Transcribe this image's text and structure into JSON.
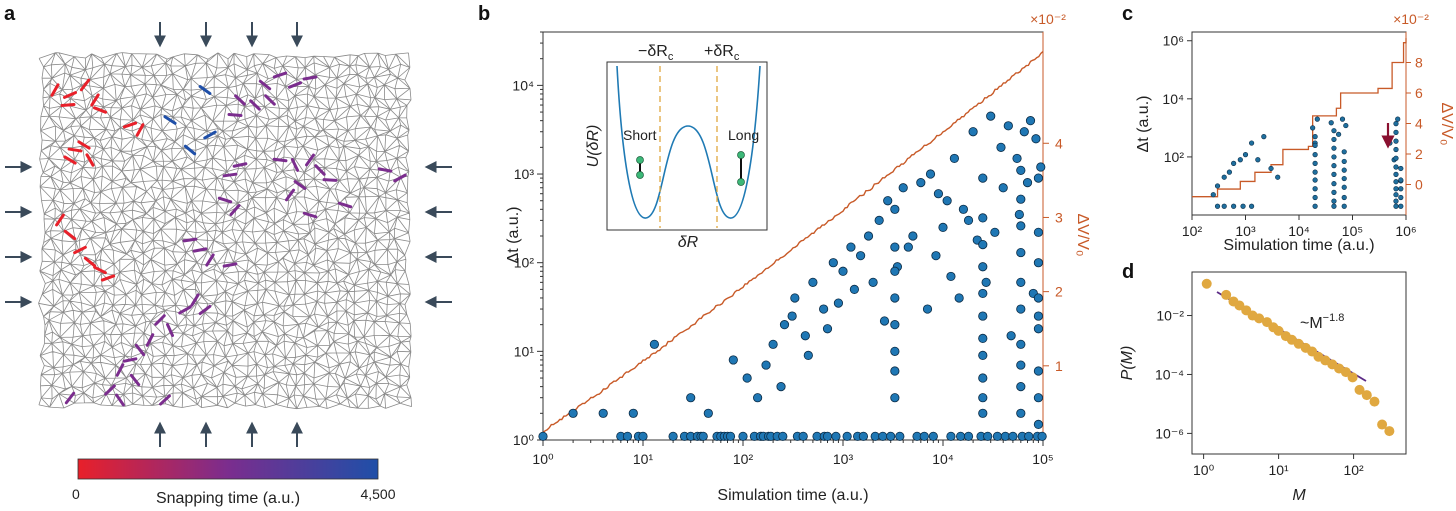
{
  "panels": {
    "a": {
      "label": "a",
      "colorbar": {
        "title": "Snapping time (a.u.)",
        "min_label": "0",
        "max_label": "4,500",
        "color_start": "#e8202a",
        "color_mid": "#7b2d8e",
        "color_end": "#1f4fa8"
      },
      "mesh_color": "#8a8a8a",
      "arrow_color": "#3a4a5a"
    },
    "b": {
      "label": "b",
      "xlabel": "Simulation time (a.u.)",
      "ylabel": "Δt (a.u.)",
      "ylabel_right": "ΔV/V₀",
      "right_multiplier": "×10⁻²",
      "x_ticks": [
        "10⁰",
        "10¹",
        "10²",
        "10³",
        "10⁴",
        "10⁵"
      ],
      "y_ticks": [
        "10⁰",
        "10¹",
        "10²",
        "10³",
        "10⁴"
      ],
      "y_ticks_right": [
        "1",
        "2",
        "3",
        "4"
      ],
      "inset": {
        "xlabel": "δR",
        "ylabel": "U(δR)",
        "left_marker": "−δR",
        "left_marker_sub": "c",
        "right_marker": "+δR",
        "right_marker_sub": "c",
        "short_label": "Short",
        "long_label": "Long"
      }
    },
    "c": {
      "label": "c",
      "xlabel": "Simulation time (a.u.)",
      "ylabel": "Δt (a.u.)",
      "ylabel_right": "ΔV/V₀",
      "right_multiplier": "×10⁻²",
      "x_ticks": [
        "10²",
        "10³",
        "10⁴",
        "10⁵",
        "10⁶"
      ],
      "y_ticks": [
        "10²",
        "10⁴",
        "10⁶"
      ],
      "y_ticks_right": [
        "0",
        "2",
        "4",
        "6",
        "8"
      ]
    },
    "d": {
      "label": "d",
      "xlabel": "M",
      "ylabel": "P(M)",
      "fit_label": "~M",
      "fit_exponent": "−1.8",
      "x_ticks": [
        "10⁰",
        "10¹",
        "10²"
      ],
      "y_ticks": [
        "10⁻²",
        "10⁻⁴",
        "10⁻⁶"
      ]
    }
  },
  "chart_data": [
    {
      "panel": "b",
      "type": "scatter",
      "xlabel": "Simulation time (a.u.)",
      "ylabel": "Δt (a.u.)",
      "xscale": "log",
      "yscale": "log",
      "xlim": [
        1,
        100000
      ],
      "ylim": [
        1,
        40000
      ],
      "right_axis": {
        "label": "ΔV/V₀",
        "multiplier": "×10⁻²",
        "ylim": [
          0,
          5.5
        ]
      },
      "series": [
        {
          "type": "scatter",
          "x": [
            1,
            2,
            4,
            8,
            13,
            20,
            30,
            45,
            60,
            80,
            100,
            140,
            200,
            260,
            330,
            420,
            500,
            640,
            800,
            1000,
            1200,
            1500,
            1800,
            2300,
            2800,
            3300,
            4000,
            5000,
            6000,
            7500,
            9000,
            11000,
            13000,
            16000,
            20000,
            25000,
            30000,
            38000,
            45000,
            55000,
            65000,
            75000,
            85000,
            95000,
            110,
            170,
            240,
            310,
            450,
            700,
            900,
            1300,
            2000,
            2600,
            3500,
            4500,
            7000,
            8500,
            10000,
            12000,
            14500,
            18000,
            22000,
            27000,
            33000,
            40000,
            48000,
            58000,
            70000,
            80000,
            90000
          ],
          "y": [
            1.1,
            2,
            2,
            2,
            12,
            1.1,
            3,
            2,
            1.1,
            8,
            1.1,
            3,
            12,
            20,
            40,
            15,
            60,
            30,
            100,
            80,
            150,
            120,
            200,
            300,
            500,
            400,
            700,
            200,
            800,
            1000,
            600,
            500,
            1500,
            400,
            3000,
            900,
            4500,
            2000,
            3500,
            1500,
            3000,
            4000,
            2500,
            1200,
            5,
            7,
            4,
            25,
            9,
            18,
            35,
            50,
            60,
            22,
            90,
            150,
            30,
            120,
            250,
            70,
            40,
            300,
            180,
            60,
            220,
            700,
            15,
            350,
            800,
            45,
            25
          ]
        }
      ]
    },
    {
      "panel": "c",
      "type": "scatter",
      "xlabel": "Simulation time (a.u.)",
      "ylabel": "Δt (a.u.)",
      "xscale": "log",
      "yscale": "log",
      "xlim": [
        100,
        1000000
      ],
      "ylim": [
        1,
        2000000
      ],
      "right_axis": {
        "label": "ΔV/V₀",
        "multiplier": "×10⁻²",
        "ylim": [
          -2,
          10
        ]
      },
      "series": [
        {
          "type": "scatter",
          "x": [
            250,
            300,
            400,
            500,
            600,
            800,
            1000,
            1300,
            1700,
            2200,
            3000,
            4000,
            18000,
            20000,
            22000,
            40000,
            55000,
            65000,
            75000,
            500000,
            600000,
            700000,
            800000
          ],
          "y": [
            5,
            10,
            20,
            30,
            60,
            80,
            120,
            300,
            80,
            500,
            40,
            20,
            1000,
            300,
            2000,
            1500,
            600,
            2000,
            1200,
            300,
            80,
            2000,
            15
          ]
        }
      ]
    },
    {
      "panel": "d",
      "type": "scatter",
      "xlabel": "M",
      "ylabel": "P(M)",
      "xscale": "log",
      "yscale": "log",
      "xlim": [
        0.7,
        500
      ],
      "ylim": [
        2e-07,
        0.3
      ],
      "fit": {
        "label": "~M",
        "exponent": -1.8
      },
      "series": [
        {
          "type": "scatter",
          "x": [
            1.1,
            2,
            2.5,
            3,
            3.7,
            4.5,
            5.5,
            7,
            8.5,
            10,
            12.5,
            15,
            18.5,
            23,
            28,
            34,
            42,
            52,
            64,
            79,
            97,
            120,
            150,
            190,
            240,
            300
          ],
          "y": [
            0.12,
            0.05,
            0.03,
            0.022,
            0.015,
            0.01,
            0.008,
            0.006,
            0.004,
            0.003,
            0.002,
            0.0015,
            0.0011,
            0.0008,
            0.0006,
            0.0004,
            0.0003,
            0.00022,
            0.00016,
            0.00012,
            8e-05,
            3e-05,
            2e-05,
            1.2e-05,
            2e-06,
            1.2e-06
          ]
        }
      ]
    }
  ]
}
